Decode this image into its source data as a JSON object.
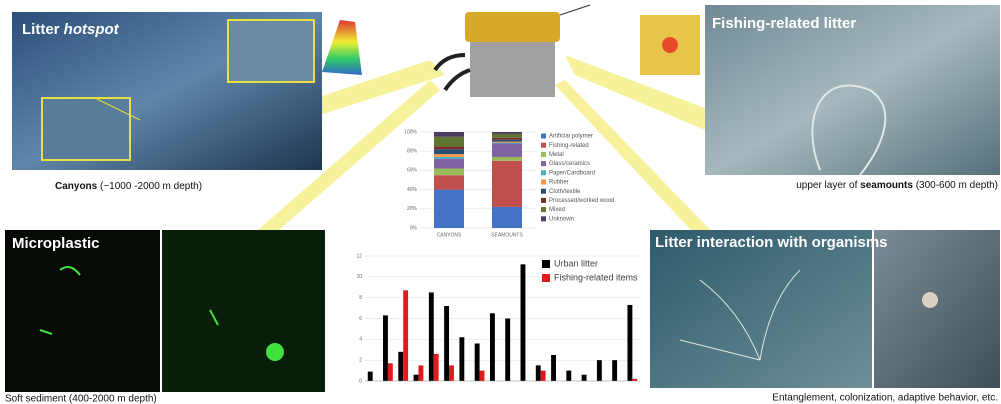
{
  "panels": {
    "canyons": {
      "title": "Litter ",
      "title_em": "hotspot",
      "caption_bold": "Canyons",
      "caption_rest": " (~1000 -2000 m depth)"
    },
    "seamounts": {
      "title": "Fishing-related litter",
      "caption_rest": "upper layer of ",
      "caption_bold": "seamounts",
      "caption_end": " (300-600 m depth)"
    },
    "microplastic": {
      "title": "Microplastic",
      "caption": "Soft sediment (400-2000 m depth)"
    },
    "organisms": {
      "title": "Litter interaction with organisms",
      "caption": "Entanglement, colonization, adaptive behavior, etc."
    }
  },
  "chart_data": [
    {
      "type": "stacked_bar",
      "categories": [
        "CANYONS",
        "SEAMOUNTS"
      ],
      "series": [
        {
          "name": "Artificial polymer",
          "color": "#4472c4",
          "values": [
            40,
            22
          ]
        },
        {
          "name": "Fishing-related",
          "color": "#c0504d",
          "values": [
            15,
            48
          ]
        },
        {
          "name": "Metal",
          "color": "#9bbb59",
          "values": [
            7,
            4
          ]
        },
        {
          "name": "Glass/ceramics",
          "color": "#8064a2",
          "values": [
            10,
            14
          ]
        },
        {
          "name": "Paper/Cardboard",
          "color": "#4bacc6",
          "values": [
            2,
            1
          ]
        },
        {
          "name": "Rubber",
          "color": "#f79646",
          "values": [
            3,
            1
          ]
        },
        {
          "name": "Cloth/textile",
          "color": "#2c4d75",
          "values": [
            5,
            2
          ]
        },
        {
          "name": "Processed/worked wood",
          "color": "#772c2a",
          "values": [
            3,
            2
          ]
        },
        {
          "name": "Mixed",
          "color": "#5f7530",
          "values": [
            10,
            4
          ]
        },
        {
          "name": "Unknown",
          "color": "#4d3b62",
          "values": [
            5,
            2
          ]
        }
      ],
      "ylim": [
        0,
        100
      ],
      "yticks": [
        {
          "value": 0,
          "label": "0%"
        },
        {
          "value": 20,
          "label": "20%"
        },
        {
          "value": 40,
          "label": "40%"
        },
        {
          "value": 60,
          "label": "60%"
        },
        {
          "value": 80,
          "label": "80%"
        },
        {
          "value": 100,
          "label": "100%"
        }
      ]
    },
    {
      "type": "bar",
      "categories": [
        null,
        null,
        null,
        null,
        null,
        null,
        null,
        null,
        null,
        null,
        null,
        null,
        null,
        null,
        null,
        null,
        null,
        null
      ],
      "series": [
        {
          "name": "Urban litter",
          "color": "#000000",
          "values": [
            0.9,
            6.3,
            2.8,
            0.6,
            8.5,
            7.2,
            4.2,
            3.6,
            6.5,
            6,
            11.2,
            1.5,
            2.5,
            1,
            0.6,
            2,
            2,
            7.3
          ]
        },
        {
          "name": "Fishing-related items",
          "color": "#e31a1c",
          "values": [
            0,
            1.7,
            8.7,
            1.5,
            2.6,
            1.5,
            0,
            1,
            0,
            0,
            0,
            1,
            0,
            0,
            0,
            0,
            0,
            0.2
          ]
        }
      ],
      "ylim": [
        0,
        12
      ],
      "yticks": [
        0,
        2,
        4,
        6,
        8,
        10,
        12
      ]
    }
  ]
}
